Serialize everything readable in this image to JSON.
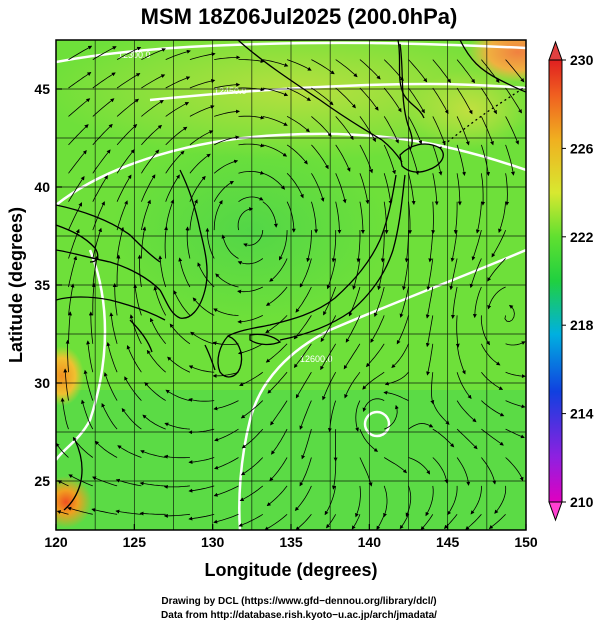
{
  "title": "MSM 18Z06Jul2025 (200.0hPa)",
  "credits": {
    "line1": "Drawing by DCL (https://www.gfd−dennou.org/library/dcl/)",
    "line2": "Data from http://database.rish.kyoto−u.ac.jp/arch/jmadata/"
  },
  "axes": {
    "xlabel": "Longitude (degrees)",
    "ylabel": "Latitude (degrees)",
    "xrange": [
      120,
      150
    ],
    "yrange": [
      22.5,
      47.5
    ],
    "xticks": [
      "120",
      "125",
      "130",
      "135",
      "140",
      "145",
      "150"
    ],
    "yticks": [
      "25",
      "30",
      "35",
      "40",
      "45"
    ]
  },
  "colorbar": {
    "min": 210,
    "max": 230,
    "ticks": [
      "210",
      "214",
      "218",
      "222",
      "226",
      "230"
    ]
  },
  "contours": {
    "labels": [
      "12300.0",
      "12450.0",
      "12600.0"
    ]
  },
  "chart_data": {
    "type": "heatmap",
    "title": "MSM 18Z06Jul2025 (200.0hPa)",
    "xlabel": "Longitude (degrees)",
    "ylabel": "Latitude (degrees)",
    "xlim": [
      120,
      150
    ],
    "ylim": [
      22.5,
      47.5
    ],
    "colorbar_range": [
      210,
      230
    ],
    "features": {
      "anticyclone_center": [
        132.5,
        38
      ],
      "vortex_centers": [
        [
          140.2,
          28.5
        ],
        [
          148.7,
          33.4
        ]
      ],
      "warm_spots": [
        [
          120.5,
          24
        ],
        [
          120,
          31
        ],
        [
          149,
          47
        ]
      ]
    }
  }
}
